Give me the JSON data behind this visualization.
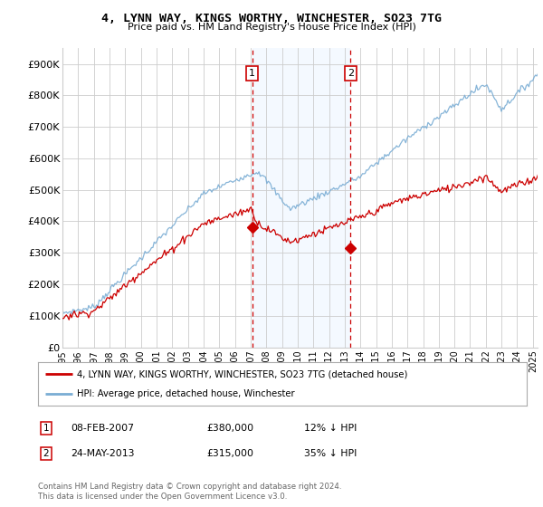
{
  "title1": "4, LYNN WAY, KINGS WORTHY, WINCHESTER, SO23 7TG",
  "title2": "Price paid vs. HM Land Registry's House Price Index (HPI)",
  "ylim": [
    0,
    950000
  ],
  "yticks": [
    0,
    100000,
    200000,
    300000,
    400000,
    500000,
    600000,
    700000,
    800000,
    900000
  ],
  "ytick_labels": [
    "£0",
    "£100K",
    "£200K",
    "£300K",
    "£400K",
    "£500K",
    "£600K",
    "£700K",
    "£800K",
    "£900K"
  ],
  "hpi_color": "#7aadd4",
  "price_color": "#cc0000",
  "marker1_date": 2007.1,
  "marker1_price": 380000,
  "marker2_date": 2013.38,
  "marker2_price": 315000,
  "shade_color": "#ddeeff",
  "legend_line1": "4, LYNN WAY, KINGS WORTHY, WINCHESTER, SO23 7TG (detached house)",
  "legend_line2": "HPI: Average price, detached house, Winchester",
  "table_row1": [
    "1",
    "08-FEB-2007",
    "£380,000",
    "12% ↓ HPI"
  ],
  "table_row2": [
    "2",
    "24-MAY-2013",
    "£315,000",
    "35% ↓ HPI"
  ],
  "footnote": "Contains HM Land Registry data © Crown copyright and database right 2024.\nThis data is licensed under the Open Government Licence v3.0.",
  "background_color": "#ffffff",
  "grid_color": "#cccccc",
  "xlim_start": 1995,
  "xlim_end": 2025.3
}
